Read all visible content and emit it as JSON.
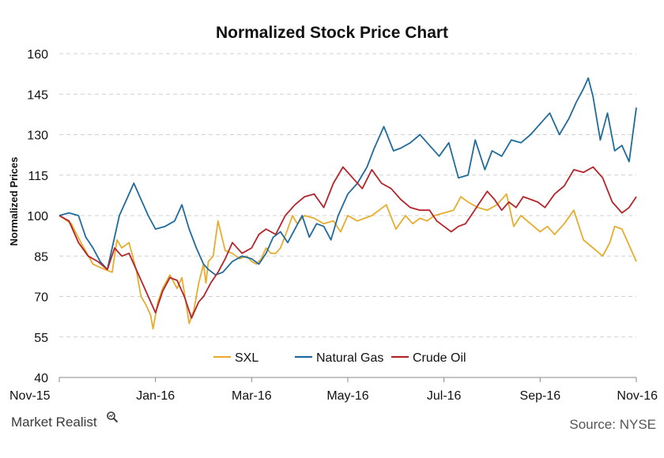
{
  "colors": {
    "SXL": "#E6AD2E",
    "Natural Gas": "#1F6C9C",
    "Crude Oil": "#B5242A",
    "grid": "#d0d0d0"
  },
  "chart_data": {
    "type": "line",
    "title": "Normalized Stock Price Chart",
    "ylabel": "Normalized Prices",
    "xlabel": "",
    "ylim": [
      40,
      160
    ],
    "yticks": [
      40,
      55,
      70,
      85,
      100,
      115,
      130,
      145,
      160
    ],
    "xlim": [
      0,
      12
    ],
    "x_tick_labels": [
      "Nov-15",
      "Jan-16",
      "Mar-16",
      "May-16",
      "Jul-16",
      "Sep-16",
      "Nov-16"
    ],
    "x_tick_positions": [
      0,
      2,
      4,
      6,
      8,
      10,
      12
    ],
    "x_unit": "months since Nov-15",
    "grid": true,
    "legend_position": "bottom-center",
    "series": [
      {
        "name": "SXL",
        "x": [
          0,
          0.25,
          0.45,
          0.7,
          0.95,
          1.1,
          1.2,
          1.3,
          1.45,
          1.6,
          1.7,
          1.8,
          1.9,
          1.95,
          2.05,
          2.15,
          2.3,
          2.45,
          2.55,
          2.65,
          2.7,
          2.8,
          2.9,
          3.0,
          3.05,
          3.1,
          3.2,
          3.3,
          3.45,
          3.6,
          3.75,
          3.9,
          4.0,
          4.1,
          4.2,
          4.3,
          4.4,
          4.5,
          4.6,
          4.75,
          4.85,
          4.95,
          5.1,
          5.3,
          5.5,
          5.7,
          5.85,
          6.0,
          6.2,
          6.5,
          6.8,
          7.0,
          7.2,
          7.35,
          7.5,
          7.65,
          7.8,
          8.0,
          8.2,
          8.35,
          8.5,
          8.7,
          8.9,
          9.1,
          9.3,
          9.45,
          9.6,
          9.8,
          10.0,
          10.15,
          10.3,
          10.5,
          10.7,
          10.9,
          11.1,
          11.3,
          11.45,
          11.55,
          11.7,
          11.85,
          12.0
        ],
        "values": [
          100,
          97,
          90,
          82,
          80,
          79,
          91,
          88,
          90,
          80,
          70,
          67,
          63,
          58,
          68,
          73,
          78,
          73,
          77,
          66,
          60,
          65,
          75,
          82,
          75,
          83,
          85,
          98,
          87,
          86,
          84,
          85,
          83,
          82,
          84,
          88,
          86,
          86,
          88,
          95,
          100,
          97,
          100,
          99,
          97,
          98,
          94,
          100,
          98,
          100,
          104,
          95,
          100,
          97,
          99,
          98,
          100,
          101,
          102,
          107,
          105,
          103,
          102,
          104,
          108,
          96,
          100,
          97,
          94,
          96,
          93,
          97,
          102,
          91,
          88,
          85,
          90,
          96,
          95,
          89,
          83
        ]
      },
      {
        "name": "Natural Gas",
        "x": [
          0,
          0.2,
          0.4,
          0.55,
          0.7,
          0.85,
          1.0,
          1.1,
          1.25,
          1.4,
          1.55,
          1.7,
          1.85,
          2.0,
          2.2,
          2.4,
          2.55,
          2.7,
          2.85,
          3.0,
          3.1,
          3.25,
          3.4,
          3.6,
          3.8,
          4.0,
          4.15,
          4.3,
          4.45,
          4.6,
          4.75,
          4.9,
          5.05,
          5.2,
          5.35,
          5.5,
          5.65,
          5.8,
          6.0,
          6.2,
          6.4,
          6.55,
          6.75,
          6.95,
          7.1,
          7.3,
          7.5,
          7.7,
          7.9,
          8.1,
          8.3,
          8.5,
          8.65,
          8.85,
          9.0,
          9.2,
          9.4,
          9.6,
          9.8,
          10.0,
          10.2,
          10.4,
          10.6,
          10.75,
          10.9,
          11.0,
          11.1,
          11.25,
          11.4,
          11.55,
          11.7,
          11.85,
          12.0
        ],
        "values": [
          100,
          101,
          100,
          92,
          88,
          83,
          80,
          88,
          100,
          106,
          112,
          106,
          100,
          95,
          96,
          98,
          104,
          95,
          88,
          82,
          80,
          78,
          79,
          83,
          85,
          84,
          82,
          86,
          92,
          94,
          90,
          95,
          100,
          92,
          97,
          96,
          91,
          100,
          108,
          112,
          118,
          125,
          133,
          124,
          125,
          127,
          130,
          126,
          122,
          127,
          114,
          115,
          128,
          117,
          124,
          122,
          128,
          127,
          130,
          134,
          138,
          130,
          136,
          142,
          147,
          151,
          144,
          128,
          138,
          124,
          126,
          120,
          140
        ]
      },
      {
        "name": "Crude Oil",
        "x": [
          0,
          0.2,
          0.4,
          0.6,
          0.8,
          1.0,
          1.15,
          1.3,
          1.45,
          1.6,
          1.75,
          1.9,
          2.0,
          2.15,
          2.3,
          2.45,
          2.6,
          2.75,
          2.9,
          3.0,
          3.15,
          3.3,
          3.45,
          3.6,
          3.8,
          4.0,
          4.15,
          4.3,
          4.5,
          4.7,
          4.9,
          5.1,
          5.3,
          5.5,
          5.7,
          5.9,
          6.1,
          6.3,
          6.5,
          6.7,
          6.9,
          7.1,
          7.3,
          7.5,
          7.7,
          7.85,
          8.0,
          8.15,
          8.3,
          8.45,
          8.6,
          8.75,
          8.9,
          9.05,
          9.2,
          9.35,
          9.5,
          9.65,
          9.8,
          9.95,
          10.1,
          10.3,
          10.5,
          10.7,
          10.9,
          11.1,
          11.3,
          11.5,
          11.7,
          11.85,
          12.0
        ],
        "values": [
          100,
          98,
          90,
          85,
          83,
          80,
          88,
          85,
          86,
          80,
          74,
          68,
          64,
          72,
          77,
          76,
          70,
          62,
          68,
          70,
          75,
          79,
          84,
          90,
          86,
          88,
          93,
          95,
          93,
          100,
          104,
          107,
          108,
          103,
          112,
          118,
          114,
          110,
          117,
          112,
          110,
          106,
          103,
          102,
          102,
          98,
          96,
          94,
          96,
          97,
          101,
          105,
          109,
          106,
          102,
          105,
          103,
          107,
          106,
          105,
          103,
          108,
          111,
          117,
          116,
          118,
          114,
          105,
          101,
          103,
          107
        ]
      }
    ]
  },
  "source": "Source: NYSE",
  "brand": "Market Realist",
  "brand_icon": "magnifier-icon"
}
